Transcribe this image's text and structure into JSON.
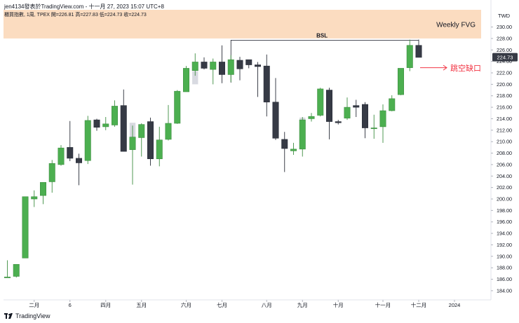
{
  "header": {
    "publisher_line": "jen4134發表於TradingView.com - 十一月 27, 2023 15:07 UTC+8",
    "symbol_line": "櫃買指數, 1周, TPEX  開=226.81  高=227.83  低=224.73  收=224.73"
  },
  "footer": {
    "brand": "TradingView"
  },
  "colors": {
    "up": "#4caf50",
    "down": "#363a45",
    "fvg_zone": "#fbdcc0",
    "annotation_red": "#f23645",
    "bsl_line": "#131722"
  },
  "chart_data": {
    "type": "candlestick",
    "title": "",
    "currency_label": "TWD",
    "ylim": [
      182.4,
      233.0
    ],
    "y_ticks": [
      184,
      186,
      188,
      190,
      192,
      194,
      196,
      198,
      200,
      202,
      204,
      206,
      208,
      210,
      212,
      214,
      216,
      218,
      220,
      222,
      224,
      226,
      228,
      230
    ],
    "x_labels": [
      {
        "at": 3.0,
        "text": "二月"
      },
      {
        "at": 7.0,
        "text": "6"
      },
      {
        "at": 11.0,
        "text": "四月"
      },
      {
        "at": 15.0,
        "text": "五月"
      },
      {
        "at": 20.0,
        "text": "六月"
      },
      {
        "at": 24.0,
        "text": "七月"
      },
      {
        "at": 29.0,
        "text": "八月"
      },
      {
        "at": 33.0,
        "text": "九月"
      },
      {
        "at": 37.0,
        "text": "十月"
      },
      {
        "at": 42.0,
        "text": "十一月"
      },
      {
        "at": 46.0,
        "text": "十二月"
      },
      {
        "at": 50.0,
        "text": "2024"
      }
    ],
    "candles": [
      {
        "o": 186.4,
        "h": 189.3,
        "l": 186.4,
        "c": 186.4
      },
      {
        "o": 186.5,
        "h": 188.6,
        "l": 186.3,
        "c": 188.6
      },
      {
        "o": 189.7,
        "h": 200.4,
        "l": 189.7,
        "c": 200.4
      },
      {
        "o": 200.0,
        "h": 201.5,
        "l": 198.6,
        "c": 200.4
      },
      {
        "o": 200.6,
        "h": 202.9,
        "l": 199.1,
        "c": 202.9
      },
      {
        "o": 203.0,
        "h": 206.8,
        "l": 201.1,
        "c": 206.2
      },
      {
        "o": 206.0,
        "h": 209.4,
        "l": 205.8,
        "c": 208.9
      },
      {
        "o": 209.0,
        "h": 213.6,
        "l": 206.6,
        "c": 207.1
      },
      {
        "o": 207.1,
        "h": 207.9,
        "l": 202.4,
        "c": 206.3
      },
      {
        "o": 206.7,
        "h": 214.5,
        "l": 206.1,
        "c": 213.7
      },
      {
        "o": 213.8,
        "h": 214.0,
        "l": 211.9,
        "c": 212.5
      },
      {
        "o": 212.6,
        "h": 214.3,
        "l": 212.0,
        "c": 213.1
      },
      {
        "o": 212.9,
        "h": 217.2,
        "l": 212.6,
        "c": 216.2
      },
      {
        "o": 216.3,
        "h": 219.1,
        "l": 208.5,
        "c": 208.3
      },
      {
        "o": 208.6,
        "h": 212.8,
        "l": 202.5,
        "c": 210.8
      },
      {
        "o": 210.7,
        "h": 213.2,
        "l": 207.4,
        "c": 213.0
      },
      {
        "o": 213.5,
        "h": 214.2,
        "l": 205.8,
        "c": 207.0
      },
      {
        "o": 207.0,
        "h": 212.6,
        "l": 205.7,
        "c": 210.3
      },
      {
        "o": 210.4,
        "h": 216.4,
        "l": 210.2,
        "c": 213.2
      },
      {
        "o": 213.2,
        "h": 219.0,
        "l": 213.1,
        "c": 218.8
      },
      {
        "o": 218.7,
        "h": 223.2,
        "l": 218.7,
        "c": 222.8
      },
      {
        "o": 222.4,
        "h": 225.4,
        "l": 221.5,
        "c": 223.9
      },
      {
        "o": 223.9,
        "h": 224.7,
        "l": 222.6,
        "c": 222.8
      },
      {
        "o": 222.6,
        "h": 224.5,
        "l": 220.0,
        "c": 223.9
      },
      {
        "o": 223.9,
        "h": 226.8,
        "l": 220.2,
        "c": 221.7
      },
      {
        "o": 221.7,
        "h": 225.1,
        "l": 220.4,
        "c": 224.3
      },
      {
        "o": 224.2,
        "h": 224.8,
        "l": 220.7,
        "c": 222.7
      },
      {
        "o": 224.3,
        "h": 224.3,
        "l": 222.8,
        "c": 223.4
      },
      {
        "o": 223.4,
        "h": 223.9,
        "l": 217.8,
        "c": 223.1
      },
      {
        "o": 223.2,
        "h": 225.2,
        "l": 214.4,
        "c": 216.9
      },
      {
        "o": 216.9,
        "h": 221.1,
        "l": 210.3,
        "c": 210.6
      },
      {
        "o": 210.4,
        "h": 211.7,
        "l": 204.7,
        "c": 208.8
      },
      {
        "o": 208.4,
        "h": 209.8,
        "l": 207.7,
        "c": 208.7
      },
      {
        "o": 208.7,
        "h": 214.3,
        "l": 207.4,
        "c": 213.8
      },
      {
        "o": 214.0,
        "h": 215.0,
        "l": 213.5,
        "c": 214.4
      },
      {
        "o": 214.6,
        "h": 219.4,
        "l": 214.4,
        "c": 219.2
      },
      {
        "o": 219.0,
        "h": 219.4,
        "l": 210.4,
        "c": 213.5
      },
      {
        "o": 213.5,
        "h": 213.8,
        "l": 213.0,
        "c": 213.3
      },
      {
        "o": 214.1,
        "h": 217.7,
        "l": 213.8,
        "c": 216.0
      },
      {
        "o": 216.3,
        "h": 217.3,
        "l": 214.3,
        "c": 216.0
      },
      {
        "o": 216.5,
        "h": 216.9,
        "l": 210.6,
        "c": 212.4
      },
      {
        "o": 212.3,
        "h": 214.7,
        "l": 210.5,
        "c": 212.4
      },
      {
        "o": 212.6,
        "h": 216.5,
        "l": 209.8,
        "c": 215.4
      },
      {
        "o": 215.4,
        "h": 218.1,
        "l": 215.3,
        "c": 217.5
      },
      {
        "o": 218.2,
        "h": 222.8,
        "l": 218.1,
        "c": 222.8
      },
      {
        "o": 222.9,
        "h": 227.8,
        "l": 222.3,
        "c": 226.8
      },
      {
        "o": 226.8,
        "h": 227.8,
        "l": 224.7,
        "c": 224.7
      }
    ],
    "faded_ranges": [
      {
        "x": 9,
        "y1": 207.0,
        "y2": 209.8
      },
      {
        "x": 14,
        "y1": 210.8,
        "y2": 213.3
      },
      {
        "x": 21,
        "y1": 220.0,
        "y2": 222.3
      },
      {
        "x": 29,
        "y1": 218.7,
        "y2": 219.5
      },
      {
        "x": 30,
        "y1": 211.3,
        "y2": 214.0
      },
      {
        "x": 33,
        "y1": 211.3,
        "y2": 214.2
      }
    ],
    "fvg_zone": {
      "label": "Weekly FVG",
      "y_low": 228.0,
      "y_high": 233.0
    },
    "bsl": {
      "label": "BSL",
      "level": 227.7,
      "x_start": 25,
      "x_end": 46
    },
    "annotation": {
      "label": "跳空缺口",
      "level": 222.9,
      "x_from": 46
    },
    "last_price": {
      "value": "224.73",
      "level": 224.73
    }
  }
}
